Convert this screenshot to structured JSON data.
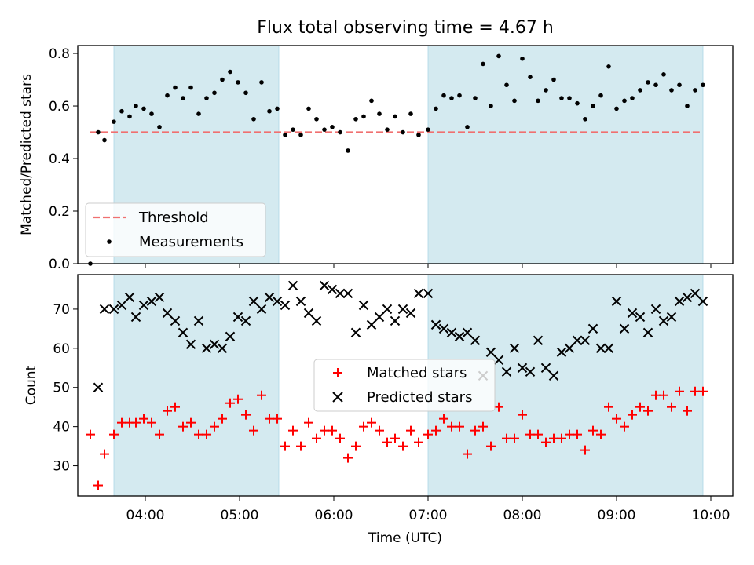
{
  "chart_data": [
    {
      "type": "scatter",
      "title": "Flux total observing time = 4.67 h",
      "ylabel": "Matched/Predicted stars",
      "xlabel": "",
      "xlim": [
        "03:17",
        "10:14"
      ],
      "ylim": [
        0.0,
        0.83
      ],
      "y_ticks": [
        "0.0",
        "0.2",
        "0.4",
        "0.6",
        "0.8"
      ],
      "x_ticks": [
        "04:00",
        "05:00",
        "06:00",
        "07:00",
        "08:00",
        "09:00",
        "10:00"
      ],
      "legend_position": "lower-left",
      "shaded_intervals": [
        [
          "03:40",
          "05:25"
        ],
        [
          "07:00",
          "09:55"
        ]
      ],
      "series": [
        {
          "name": "Threshold",
          "kind": "dashed-line",
          "color": "#f07070",
          "points": [
            [
              "03:25",
              0.5
            ],
            [
              "09:55",
              0.5
            ]
          ]
        },
        {
          "name": "Measurements",
          "kind": "dots",
          "color": "#000000",
          "points": [
            [
              "03:25",
              0.0
            ],
            [
              "03:30",
              0.5
            ],
            [
              "03:34",
              0.47
            ],
            [
              "03:40",
              0.54
            ],
            [
              "03:45",
              0.58
            ],
            [
              "03:50",
              0.56
            ],
            [
              "03:54",
              0.6
            ],
            [
              "03:59",
              0.59
            ],
            [
              "04:04",
              0.57
            ],
            [
              "04:09",
              0.52
            ],
            [
              "04:14",
              0.64
            ],
            [
              "04:19",
              0.67
            ],
            [
              "04:24",
              0.63
            ],
            [
              "04:29",
              0.67
            ],
            [
              "04:34",
              0.57
            ],
            [
              "04:39",
              0.63
            ],
            [
              "04:44",
              0.65
            ],
            [
              "04:49",
              0.7
            ],
            [
              "04:54",
              0.73
            ],
            [
              "04:59",
              0.69
            ],
            [
              "05:04",
              0.65
            ],
            [
              "05:09",
              0.55
            ],
            [
              "05:14",
              0.69
            ],
            [
              "05:19",
              0.58
            ],
            [
              "05:24",
              0.59
            ],
            [
              "05:29",
              0.49
            ],
            [
              "05:34",
              0.51
            ],
            [
              "05:39",
              0.49
            ],
            [
              "05:44",
              0.59
            ],
            [
              "05:49",
              0.55
            ],
            [
              "05:54",
              0.51
            ],
            [
              "05:59",
              0.52
            ],
            [
              "06:04",
              0.5
            ],
            [
              "06:09",
              0.43
            ],
            [
              "06:14",
              0.55
            ],
            [
              "06:19",
              0.56
            ],
            [
              "06:24",
              0.62
            ],
            [
              "06:29",
              0.57
            ],
            [
              "06:34",
              0.51
            ],
            [
              "06:39",
              0.56
            ],
            [
              "06:44",
              0.5
            ],
            [
              "06:49",
              0.57
            ],
            [
              "06:54",
              0.49
            ],
            [
              "07:00",
              0.51
            ],
            [
              "07:05",
              0.59
            ],
            [
              "07:10",
              0.64
            ],
            [
              "07:15",
              0.63
            ],
            [
              "07:20",
              0.64
            ],
            [
              "07:25",
              0.52
            ],
            [
              "07:30",
              0.63
            ],
            [
              "07:35",
              0.76
            ],
            [
              "07:40",
              0.6
            ],
            [
              "07:45",
              0.79
            ],
            [
              "07:50",
              0.68
            ],
            [
              "07:55",
              0.62
            ],
            [
              "08:00",
              0.78
            ],
            [
              "08:05",
              0.71
            ],
            [
              "08:10",
              0.62
            ],
            [
              "08:15",
              0.66
            ],
            [
              "08:20",
              0.7
            ],
            [
              "08:25",
              0.63
            ],
            [
              "08:30",
              0.63
            ],
            [
              "08:35",
              0.61
            ],
            [
              "08:40",
              0.55
            ],
            [
              "08:45",
              0.6
            ],
            [
              "08:50",
              0.64
            ],
            [
              "08:55",
              0.75
            ],
            [
              "09:00",
              0.59
            ],
            [
              "09:05",
              0.62
            ],
            [
              "09:10",
              0.63
            ],
            [
              "09:15",
              0.66
            ],
            [
              "09:20",
              0.69
            ],
            [
              "09:25",
              0.68
            ],
            [
              "09:30",
              0.72
            ],
            [
              "09:35",
              0.66
            ],
            [
              "09:40",
              0.68
            ],
            [
              "09:45",
              0.6
            ],
            [
              "09:50",
              0.66
            ],
            [
              "09:55",
              0.68
            ]
          ]
        }
      ]
    },
    {
      "type": "scatter",
      "title": "",
      "ylabel": "Count",
      "xlabel": "Time (UTC)",
      "xlim": [
        "03:17",
        "10:14"
      ],
      "ylim": [
        22.3,
        78.8
      ],
      "y_ticks": [
        "30",
        "40",
        "50",
        "60",
        "70"
      ],
      "x_ticks": [
        "04:00",
        "05:00",
        "06:00",
        "07:00",
        "08:00",
        "09:00",
        "10:00"
      ],
      "legend_position": "center",
      "shaded_intervals": [
        [
          "03:40",
          "05:25"
        ],
        [
          "07:00",
          "09:55"
        ]
      ],
      "series": [
        {
          "name": "Matched stars",
          "kind": "plus",
          "color": "#ff0000",
          "points": [
            [
              "03:25",
              38
            ],
            [
              "03:30",
              25
            ],
            [
              "03:34",
              33
            ],
            [
              "03:40",
              38
            ],
            [
              "03:45",
              41
            ],
            [
              "03:50",
              41
            ],
            [
              "03:54",
              41
            ],
            [
              "03:59",
              42
            ],
            [
              "04:04",
              41
            ],
            [
              "04:09",
              38
            ],
            [
              "04:14",
              44
            ],
            [
              "04:19",
              45
            ],
            [
              "04:24",
              40
            ],
            [
              "04:29",
              41
            ],
            [
              "04:34",
              38
            ],
            [
              "04:39",
              38
            ],
            [
              "04:44",
              40
            ],
            [
              "04:49",
              42
            ],
            [
              "04:54",
              46
            ],
            [
              "04:59",
              47
            ],
            [
              "05:04",
              43
            ],
            [
              "05:09",
              39
            ],
            [
              "05:14",
              48
            ],
            [
              "05:19",
              42
            ],
            [
              "05:24",
              42
            ],
            [
              "05:29",
              35
            ],
            [
              "05:34",
              39
            ],
            [
              "05:39",
              35
            ],
            [
              "05:44",
              41
            ],
            [
              "05:49",
              37
            ],
            [
              "05:54",
              39
            ],
            [
              "05:59",
              39
            ],
            [
              "06:04",
              37
            ],
            [
              "06:09",
              32
            ],
            [
              "06:14",
              35
            ],
            [
              "06:19",
              40
            ],
            [
              "06:24",
              41
            ],
            [
              "06:29",
              39
            ],
            [
              "06:34",
              36
            ],
            [
              "06:39",
              37
            ],
            [
              "06:44",
              35
            ],
            [
              "06:49",
              39
            ],
            [
              "06:54",
              36
            ],
            [
              "07:00",
              38
            ],
            [
              "07:05",
              39
            ],
            [
              "07:10",
              42
            ],
            [
              "07:15",
              40
            ],
            [
              "07:20",
              40
            ],
            [
              "07:25",
              33
            ],
            [
              "07:30",
              39
            ],
            [
              "07:35",
              40
            ],
            [
              "07:40",
              35
            ],
            [
              "07:45",
              45
            ],
            [
              "07:50",
              37
            ],
            [
              "07:55",
              37
            ],
            [
              "08:00",
              43
            ],
            [
              "08:05",
              38
            ],
            [
              "08:10",
              38
            ],
            [
              "08:15",
              36
            ],
            [
              "08:20",
              37
            ],
            [
              "08:25",
              37
            ],
            [
              "08:30",
              38
            ],
            [
              "08:35",
              38
            ],
            [
              "08:40",
              34
            ],
            [
              "08:45",
              39
            ],
            [
              "08:50",
              38
            ],
            [
              "08:55",
              45
            ],
            [
              "09:00",
              42
            ],
            [
              "09:05",
              40
            ],
            [
              "09:10",
              43
            ],
            [
              "09:15",
              45
            ],
            [
              "09:20",
              44
            ],
            [
              "09:25",
              48
            ],
            [
              "09:30",
              48
            ],
            [
              "09:35",
              45
            ],
            [
              "09:40",
              49
            ],
            [
              "09:45",
              44
            ],
            [
              "09:50",
              49
            ],
            [
              "09:55",
              49
            ]
          ]
        },
        {
          "name": "Predicted stars",
          "kind": "x",
          "color": "#000000",
          "points": [
            [
              "03:30",
              50
            ],
            [
              "03:34",
              70
            ],
            [
              "03:40",
              70
            ],
            [
              "03:45",
              71
            ],
            [
              "03:50",
              73
            ],
            [
              "03:54",
              68
            ],
            [
              "03:59",
              71
            ],
            [
              "04:04",
              72
            ],
            [
              "04:09",
              73
            ],
            [
              "04:14",
              69
            ],
            [
              "04:19",
              67
            ],
            [
              "04:24",
              64
            ],
            [
              "04:29",
              61
            ],
            [
              "04:34",
              67
            ],
            [
              "04:39",
              60
            ],
            [
              "04:44",
              61
            ],
            [
              "04:49",
              60
            ],
            [
              "04:54",
              63
            ],
            [
              "04:59",
              68
            ],
            [
              "05:04",
              67
            ],
            [
              "05:09",
              72
            ],
            [
              "05:14",
              70
            ],
            [
              "05:19",
              73
            ],
            [
              "05:24",
              72
            ],
            [
              "05:29",
              71
            ],
            [
              "05:34",
              76
            ],
            [
              "05:39",
              72
            ],
            [
              "05:44",
              69
            ],
            [
              "05:49",
              67
            ],
            [
              "05:54",
              76
            ],
            [
              "05:59",
              75
            ],
            [
              "06:04",
              74
            ],
            [
              "06:09",
              74
            ],
            [
              "06:14",
              64
            ],
            [
              "06:19",
              71
            ],
            [
              "06:24",
              66
            ],
            [
              "06:29",
              68
            ],
            [
              "06:34",
              70
            ],
            [
              "06:39",
              67
            ],
            [
              "06:44",
              70
            ],
            [
              "06:49",
              69
            ],
            [
              "06:54",
              74
            ],
            [
              "07:00",
              74
            ],
            [
              "07:05",
              66
            ],
            [
              "07:10",
              65
            ],
            [
              "07:15",
              64
            ],
            [
              "07:20",
              63
            ],
            [
              "07:25",
              64
            ],
            [
              "07:30",
              62
            ],
            [
              "07:35",
              53
            ],
            [
              "07:40",
              59
            ],
            [
              "07:45",
              57
            ],
            [
              "07:50",
              54
            ],
            [
              "07:55",
              60
            ],
            [
              "08:00",
              55
            ],
            [
              "08:05",
              54
            ],
            [
              "08:10",
              62
            ],
            [
              "08:15",
              55
            ],
            [
              "08:20",
              53
            ],
            [
              "08:25",
              59
            ],
            [
              "08:30",
              60
            ],
            [
              "08:35",
              62
            ],
            [
              "08:40",
              62
            ],
            [
              "08:45",
              65
            ],
            [
              "08:50",
              60
            ],
            [
              "08:55",
              60
            ],
            [
              "09:00",
              72
            ],
            [
              "09:05",
              65
            ],
            [
              "09:10",
              69
            ],
            [
              "09:15",
              68
            ],
            [
              "09:20",
              64
            ],
            [
              "09:25",
              70
            ],
            [
              "09:30",
              67
            ],
            [
              "09:35",
              68
            ],
            [
              "09:40",
              72
            ],
            [
              "09:45",
              73
            ],
            [
              "09:50",
              74
            ],
            [
              "09:55",
              72
            ]
          ]
        }
      ]
    }
  ],
  "colors": {
    "shade": "#d4eaf0",
    "threshold": "#f07070",
    "matched": "#ff0000",
    "predicted": "#000000",
    "measurements": "#000000"
  }
}
